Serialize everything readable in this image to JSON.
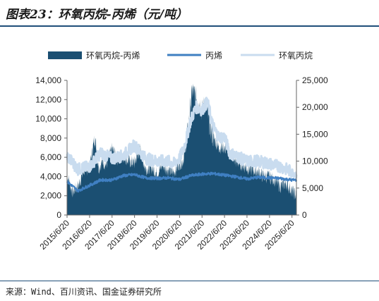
{
  "header": {
    "title": "图表23：环氧丙烷-丙烯（元/吨）"
  },
  "footer": {
    "source": "来源：Wind、百川资讯、国金证券研究所"
  },
  "colors": {
    "spread": "#1b4f72",
    "propylene": "#3f7fc2",
    "po": "#c9dcef"
  },
  "chart_data": {
    "type": "area",
    "legend_position": "top",
    "grid": false,
    "legend": [
      {
        "key": "spread",
        "label": "环氧丙烷-丙烯",
        "style": "area"
      },
      {
        "key": "propylene",
        "label": "丙烯",
        "style": "line"
      },
      {
        "key": "po",
        "label": "环氧丙烷",
        "style": "line"
      }
    ],
    "y_left": {
      "min": 0,
      "max": 14000,
      "ticks": [
        "0",
        "2,000",
        "4,000",
        "6,000",
        "8,000",
        "10,000",
        "12,000",
        "14,000"
      ],
      "tick_values": [
        0,
        2000,
        4000,
        6000,
        8000,
        10000,
        12000,
        14000
      ]
    },
    "y_right": {
      "min": 0,
      "max": 25000,
      "ticks": [
        "0",
        "5,000",
        "10,000",
        "15,000",
        "20,000",
        "25,000"
      ],
      "tick_values": [
        0,
        5000,
        10000,
        15000,
        20000,
        25000
      ]
    },
    "x_ticks": [
      "2015/6/20",
      "2016/6/20",
      "2017/6/20",
      "2018/6/20",
      "2019/6/20",
      "2020/6/20",
      "2021/6/20",
      "2022/6/20",
      "2023/6/20",
      "2024/6/20",
      "2025/6/20"
    ],
    "x_range": [
      "2015-06-20",
      "2025-08-31"
    ],
    "series": [
      {
        "name": "环氧丙烷-丙烯",
        "axis": "left",
        "x": [
          "2015-06-20",
          "2015-09-15",
          "2015-12-15",
          "2016-03-15",
          "2016-06-20",
          "2016-09-15",
          "2016-11-15",
          "2017-01-15",
          "2017-03-15",
          "2017-06-20",
          "2017-09-15",
          "2017-12-15",
          "2018-03-15",
          "2018-06-20",
          "2018-09-15",
          "2018-12-15",
          "2019-03-15",
          "2019-06-20",
          "2019-09-15",
          "2019-12-15",
          "2020-03-15",
          "2020-06-20",
          "2020-08-15",
          "2020-09-15",
          "2020-10-15",
          "2020-11-15",
          "2021-01-15",
          "2021-03-15",
          "2021-05-15",
          "2021-06-20",
          "2021-08-15",
          "2021-10-15",
          "2021-12-15",
          "2022-03-15",
          "2022-06-20",
          "2022-09-15",
          "2022-12-15",
          "2023-03-15",
          "2023-06-20",
          "2023-09-15",
          "2023-12-15",
          "2024-03-15",
          "2024-06-20",
          "2024-09-15",
          "2024-12-15",
          "2025-03-15",
          "2025-06-20",
          "2025-08-31"
        ],
        "values": [
          4200,
          2400,
          3000,
          4600,
          5000,
          8200,
          4900,
          5600,
          5200,
          6900,
          5800,
          6200,
          5600,
          5400,
          6900,
          4800,
          5000,
          4300,
          5200,
          4700,
          4400,
          5400,
          5600,
          6700,
          7800,
          9500,
          13100,
          12200,
          11600,
          10800,
          11900,
          9600,
          8100,
          7100,
          7000,
          6500,
          5600,
          5300,
          4900,
          4700,
          4500,
          4000,
          4000,
          3600,
          3000,
          3300,
          2500,
          2000
        ]
      },
      {
        "name": "丙烯",
        "axis": "right",
        "x": [
          "2015-06-20",
          "2015-12-15",
          "2016-06-20",
          "2016-12-15",
          "2017-06-20",
          "2017-12-15",
          "2018-06-20",
          "2018-12-15",
          "2019-06-20",
          "2019-12-15",
          "2020-06-20",
          "2020-12-15",
          "2021-06-20",
          "2021-12-15",
          "2022-06-20",
          "2022-12-15",
          "2023-06-20",
          "2023-12-15",
          "2024-06-20",
          "2024-12-15",
          "2025-06-20",
          "2025-08-31"
        ],
        "values": [
          6200,
          4500,
          5500,
          6500,
          6500,
          7300,
          7500,
          6900,
          6800,
          6900,
          6600,
          7300,
          7600,
          7700,
          7400,
          7100,
          6700,
          7000,
          6900,
          6800,
          6500,
          6500
        ]
      },
      {
        "name": "环氧丙烷",
        "axis": "right",
        "x": [
          "2015-06-20",
          "2015-12-15",
          "2016-06-20",
          "2016-12-15",
          "2017-06-20",
          "2017-12-15",
          "2018-06-20",
          "2018-12-15",
          "2019-06-20",
          "2019-12-15",
          "2020-03-15",
          "2020-06-20",
          "2020-09-15",
          "2020-12-15",
          "2021-03-15",
          "2021-06-20",
          "2021-09-15",
          "2021-12-15",
          "2022-03-15",
          "2022-06-20",
          "2022-09-15",
          "2022-12-15",
          "2023-06-20",
          "2023-12-15",
          "2024-06-20",
          "2024-12-15",
          "2025-06-20",
          "2025-08-31"
        ],
        "values": [
          11000,
          8500,
          9000,
          11500,
          10500,
          11000,
          13000,
          10500,
          10000,
          10000,
          9500,
          10500,
          13000,
          17500,
          20000,
          19500,
          21000,
          16500,
          14500,
          14500,
          11500,
          11000,
          10000,
          10000,
          9500,
          9000,
          8000,
          7500
        ]
      }
    ]
  }
}
